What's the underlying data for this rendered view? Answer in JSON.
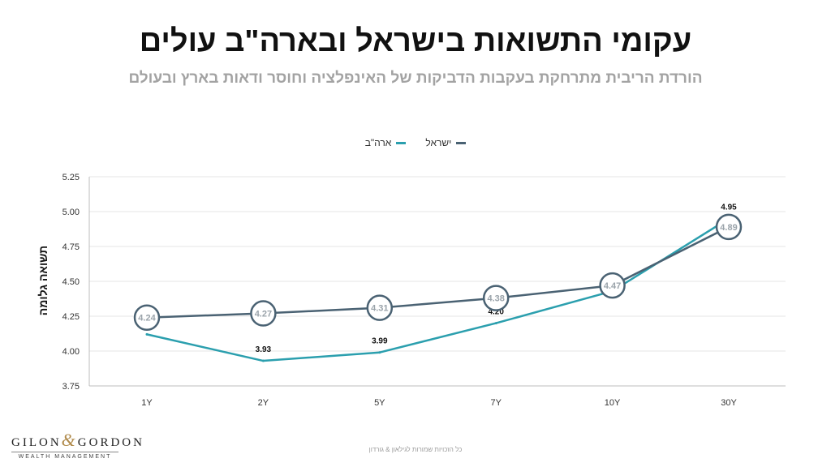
{
  "chart_data": {
    "type": "line",
    "title": "עקומי התשואות בישראל ובארה\"ב עולים",
    "subtitle": "הורדת הריבית מתרחקת בעקבות הדביקות של האינפלציה וחוסר ודאות בארץ ובעולם",
    "xlabel": "",
    "ylabel": "תשואה גלומה",
    "categories": [
      "1Y",
      "2Y",
      "5Y",
      "7Y",
      "10Y",
      "30Y"
    ],
    "ylim": [
      3.75,
      5.25
    ],
    "yticks": [
      "3.75",
      "4.00",
      "4.25",
      "4.50",
      "4.75",
      "5.00",
      "5.25"
    ],
    "grid": true,
    "legend_position": "top-center",
    "series": [
      {
        "name": "ישראל",
        "color": "#4a6273",
        "values": [
          4.24,
          4.27,
          4.31,
          4.38,
          4.47,
          4.89
        ],
        "labels": [
          "4.24",
          "4.27",
          "4.31",
          "4.38",
          "4.47",
          "4.89"
        ],
        "label_style": "circle"
      },
      {
        "name": "ארה\"ב",
        "color": "#2b9fae",
        "values": [
          4.12,
          3.93,
          3.99,
          4.2,
          4.43,
          4.95
        ],
        "labels": [
          "",
          "3.93",
          "3.99",
          "4.20",
          "",
          "4.95"
        ],
        "label_style": "text"
      }
    ]
  },
  "brand": {
    "logo_left": "GILON",
    "logo_amp": "&",
    "logo_right": "GORDON",
    "logo_sub": "WEALTH MANAGEMENT"
  },
  "footer": "כל הזכויות שמורות לגילאון & גורדון"
}
